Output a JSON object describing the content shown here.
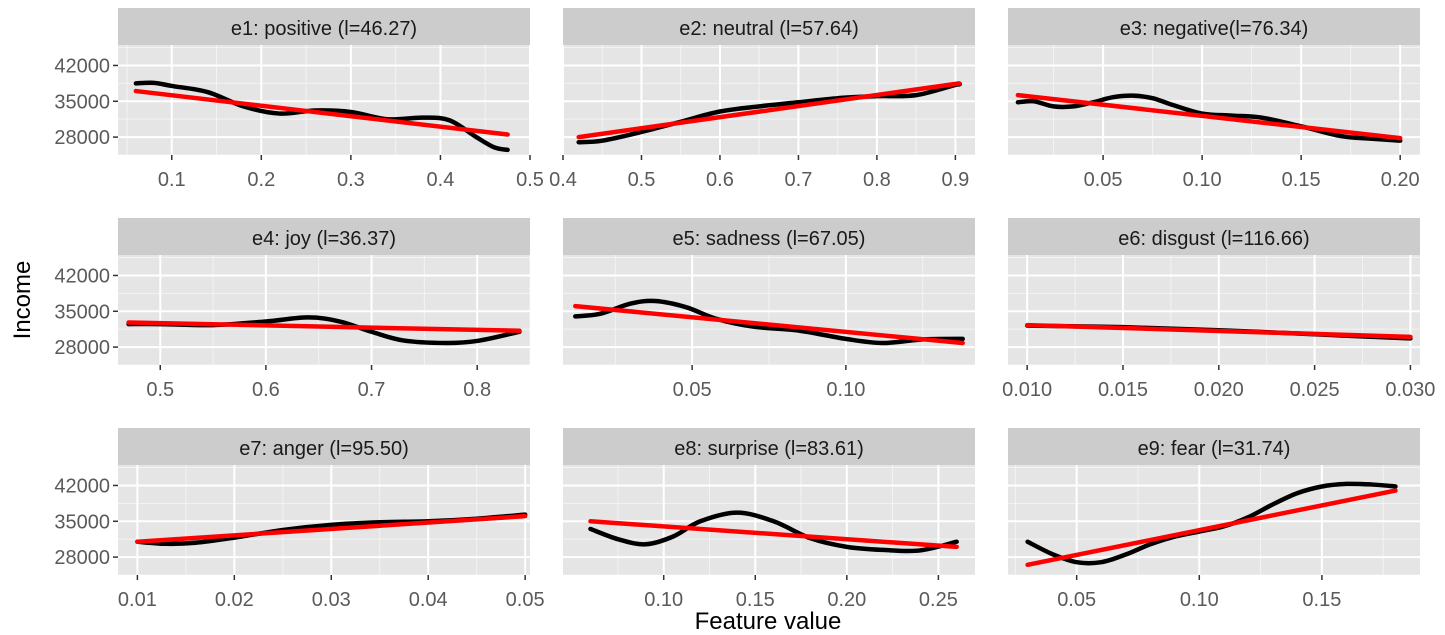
{
  "chart_data": {
    "type": "line",
    "xlabel": "Feature value",
    "ylabel": "Income",
    "y_ticks": [
      28000,
      35000,
      42000
    ],
    "ylim": [
      24500,
      46000
    ],
    "grid": true,
    "legend": "none",
    "colors": {
      "smooth": "#000000",
      "linear_fit": "#ff0000",
      "panel_bg": "#e5e5e5",
      "strip_bg": "#cccccc",
      "grid": "#ffffff"
    },
    "panels": [
      {
        "title": "e1: positive (l=46.27)",
        "xlim": [
          0.04,
          0.5
        ],
        "x_ticks": [
          0.1,
          0.2,
          0.3,
          0.4,
          0.5
        ],
        "x_tick_labels": [
          "0.1",
          "0.2",
          "0.3",
          "0.4",
          "0.5"
        ],
        "series": [
          {
            "x": [
              0.06,
              0.08,
              0.1,
              0.14,
              0.18,
              0.22,
              0.26,
              0.3,
              0.34,
              0.38,
              0.41,
              0.44,
              0.46,
              0.475
            ],
            "y": [
              38500,
              38600,
              38000,
              36800,
              34000,
              32600,
              33200,
              32900,
              31500,
              31800,
              31300,
              28000,
              26000,
              25500
            ]
          },
          {
            "x": [
              0.06,
              0.475
            ],
            "y": [
              37000,
              28500
            ]
          }
        ]
      },
      {
        "title": "e2: neutral (l=57.64)",
        "xlim": [
          0.4,
          0.925
        ],
        "x_ticks": [
          0.4,
          0.5,
          0.6,
          0.7,
          0.8,
          0.9
        ],
        "x_tick_labels": [
          "0.4",
          "0.5",
          "0.6",
          "0.7",
          "0.8",
          "0.9"
        ],
        "series": [
          {
            "x": [
              0.42,
              0.45,
              0.5,
              0.55,
              0.6,
              0.65,
              0.7,
              0.75,
              0.8,
              0.85,
              0.9,
              0.905
            ],
            "y": [
              27000,
              27300,
              29000,
              31000,
              33000,
              34000,
              34800,
              35600,
              36000,
              36200,
              38200,
              38300
            ]
          },
          {
            "x": [
              0.42,
              0.905
            ],
            "y": [
              28000,
              38500
            ]
          }
        ]
      },
      {
        "title": "e3: negative(l=76.34)",
        "xlim": [
          0.002,
          0.21
        ],
        "x_ticks": [
          0.05,
          0.1,
          0.15,
          0.2
        ],
        "x_tick_labels": [
          "0.05",
          "0.10",
          "0.15",
          "0.20"
        ],
        "series": [
          {
            "x": [
              0.007,
              0.015,
              0.025,
              0.035,
              0.045,
              0.055,
              0.065,
              0.075,
              0.085,
              0.1,
              0.115,
              0.13,
              0.15,
              0.17,
              0.185,
              0.2
            ],
            "y": [
              34800,
              35000,
              34000,
              34000,
              34800,
              35800,
              36100,
              35600,
              34300,
              32600,
              32200,
              31800,
              30100,
              28200,
              27700,
              27300
            ]
          },
          {
            "x": [
              0.007,
              0.2
            ],
            "y": [
              36200,
              27800
            ]
          }
        ]
      },
      {
        "title": "e4: joy (l=36.37)",
        "xlim": [
          0.46,
          0.85
        ],
        "x_ticks": [
          0.5,
          0.6,
          0.7,
          0.8
        ],
        "x_tick_labels": [
          "0.5",
          "0.6",
          "0.7",
          "0.8"
        ],
        "series": [
          {
            "x": [
              0.47,
              0.5,
              0.55,
              0.6,
              0.64,
              0.67,
              0.7,
              0.73,
              0.77,
              0.8,
              0.84
            ],
            "y": [
              32500,
              32500,
              32300,
              33000,
              33800,
              33000,
              31000,
              29300,
              28800,
              29200,
              31000
            ]
          },
          {
            "x": [
              0.47,
              0.84
            ],
            "y": [
              32800,
              31200
            ]
          }
        ]
      },
      {
        "title": "e5: sadness (l=67.05)",
        "xlim": [
          0.008,
          0.142
        ],
        "x_ticks": [
          0.05,
          0.1
        ],
        "x_tick_labels": [
          "0.05",
          "0.10"
        ],
        "series": [
          {
            "x": [
              0.012,
              0.02,
              0.03,
              0.038,
              0.048,
              0.058,
              0.07,
              0.085,
              0.1,
              0.112,
              0.125,
              0.138
            ],
            "y": [
              34000,
              34500,
              36500,
              37000,
              35800,
              33500,
              32000,
              31200,
              29600,
              28800,
              29500,
              29600
            ]
          },
          {
            "x": [
              0.012,
              0.138
            ],
            "y": [
              36000,
              28800
            ]
          }
        ]
      },
      {
        "title": "e6: disgust (l=116.66)",
        "xlim": [
          0.009,
          0.0305
        ],
        "x_ticks": [
          0.01,
          0.015,
          0.02,
          0.025,
          0.03
        ],
        "x_tick_labels": [
          "0.010",
          "0.015",
          "0.020",
          "0.025",
          "0.030"
        ],
        "series": [
          {
            "x": [
              0.01,
              0.015,
              0.02,
              0.025,
              0.03
            ],
            "y": [
              32200,
              31900,
              31300,
              30500,
              29700
            ]
          },
          {
            "x": [
              0.01,
              0.03
            ],
            "y": [
              32300,
              30000
            ]
          }
        ]
      },
      {
        "title": "e7: anger (l=95.50)",
        "xlim": [
          0.008,
          0.0505
        ],
        "x_ticks": [
          0.01,
          0.02,
          0.03,
          0.04,
          0.05
        ],
        "x_tick_labels": [
          "0.01",
          "0.02",
          "0.03",
          "0.04",
          "0.05"
        ],
        "series": [
          {
            "x": [
              0.01,
              0.013,
              0.016,
              0.02,
              0.025,
              0.03,
              0.035,
              0.04,
              0.045,
              0.05
            ],
            "y": [
              31000,
              30600,
              30800,
              31800,
              33300,
              34300,
              34800,
              35000,
              35500,
              36300
            ]
          },
          {
            "x": [
              0.01,
              0.05
            ],
            "y": [
              31000,
              36000
            ]
          }
        ]
      },
      {
        "title": "e8: surprise (l=83.61)",
        "xlim": [
          0.045,
          0.27
        ],
        "x_ticks": [
          0.1,
          0.15,
          0.2,
          0.25
        ],
        "x_tick_labels": [
          "0.10",
          "0.15",
          "0.20",
          "0.25"
        ],
        "series": [
          {
            "x": [
              0.06,
              0.075,
              0.09,
              0.105,
              0.12,
              0.14,
              0.16,
              0.18,
              0.2,
              0.22,
              0.24,
              0.26
            ],
            "y": [
              33500,
              31500,
              30500,
              32000,
              35000,
              36700,
              35000,
              31700,
              30000,
              29400,
              29300,
              31000
            ]
          },
          {
            "x": [
              0.06,
              0.26
            ],
            "y": [
              35000,
              30000
            ]
          }
        ]
      },
      {
        "title": "e9: fear (l=31.74)",
        "xlim": [
          0.022,
          0.19
        ],
        "x_ticks": [
          0.05,
          0.1,
          0.15
        ],
        "x_tick_labels": [
          "0.05",
          "0.10",
          "0.15"
        ],
        "series": [
          {
            "x": [
              0.03,
              0.04,
              0.05,
              0.06,
              0.07,
              0.08,
              0.09,
              0.1,
              0.11,
              0.12,
              0.13,
              0.14,
              0.15,
              0.16,
              0.17,
              0.18
            ],
            "y": [
              31000,
              28600,
              27000,
              27000,
              28500,
              30500,
              32000,
              33000,
              34000,
              35800,
              38300,
              40500,
              41800,
              42300,
              42200,
              41800
            ]
          },
          {
            "x": [
              0.03,
              0.18
            ],
            "y": [
              26500,
              41000
            ]
          }
        ]
      }
    ]
  }
}
